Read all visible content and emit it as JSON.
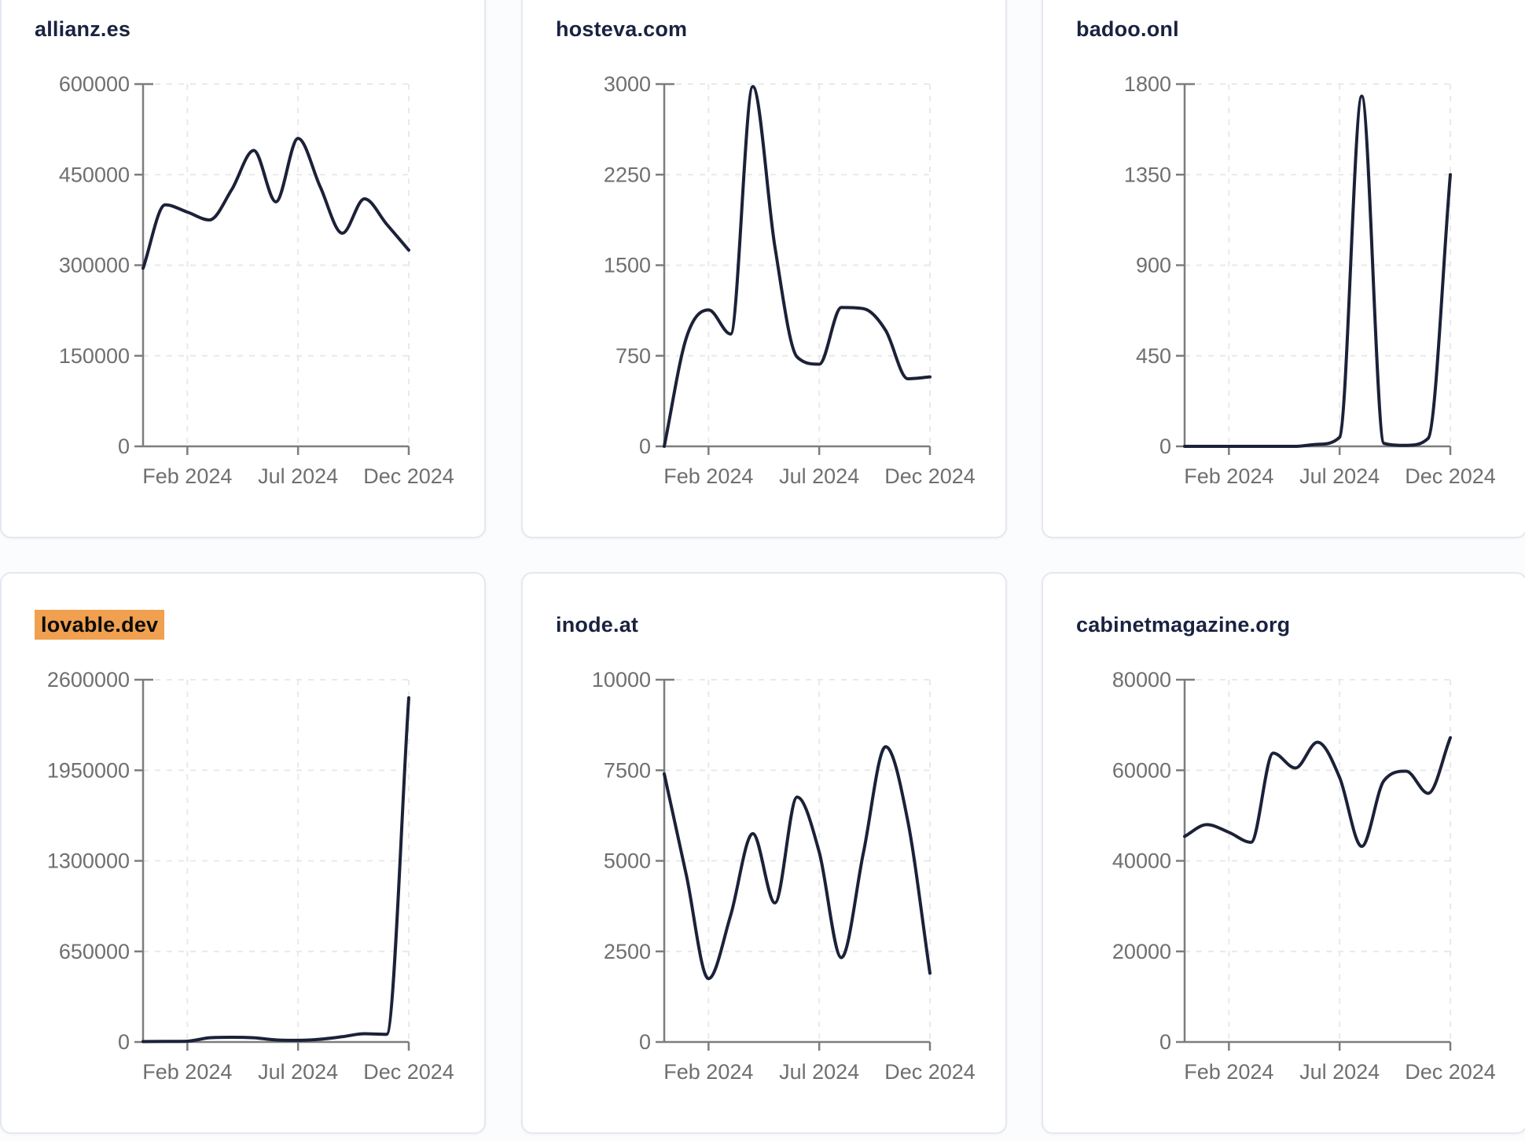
{
  "style": {
    "page_bg": "#fbfcfd",
    "card_bg": "#ffffff",
    "card_border": "#e4e8f0",
    "title_text": "#1a2240",
    "highlight_bg": "#f0a04f",
    "highlight_text": "#0c0c0c",
    "line_color": "#1b2138",
    "tick_text": "#6f6f6f",
    "axis_color": "#7d7d7d",
    "grid_color": "#e9e9e9"
  },
  "chart_data": [
    {
      "type": "line",
      "title": "allianz.es",
      "title_highlighted": false,
      "values": [
        295000,
        400000,
        388000,
        375000,
        425000,
        490000,
        405000,
        510000,
        430000,
        353000,
        410000,
        368000,
        325000
      ],
      "y_ticks": [
        0,
        150000,
        300000,
        450000,
        600000
      ],
      "y_max": 600000,
      "x_tick_labels": [
        "Feb 2024",
        "Jul 2024",
        "Dec 2024"
      ],
      "x_tick_indices": [
        2,
        7,
        12
      ],
      "xlabel": "",
      "ylabel": "",
      "grid": "dashed",
      "legend": "none"
    },
    {
      "type": "line",
      "title": "hosteva.com",
      "title_highlighted": false,
      "values": [
        0,
        900,
        1130,
        930,
        2980,
        1650,
        740,
        680,
        1150,
        1140,
        960,
        560,
        575
      ],
      "y_ticks": [
        0,
        750,
        1500,
        2250,
        3000
      ],
      "y_max": 3000,
      "x_tick_labels": [
        "Feb 2024",
        "Jul 2024",
        "Dec 2024"
      ],
      "x_tick_indices": [
        2,
        7,
        12
      ],
      "xlabel": "",
      "ylabel": "",
      "grid": "dashed",
      "legend": "none"
    },
    {
      "type": "line",
      "title": "badoo.onl",
      "title_highlighted": false,
      "values": [
        0,
        0,
        0,
        0,
        0,
        0,
        10,
        45,
        1740,
        15,
        5,
        40,
        1350
      ],
      "y_ticks": [
        0,
        450,
        900,
        1350,
        1800
      ],
      "y_max": 1800,
      "x_tick_labels": [
        "Feb 2024",
        "Jul 2024",
        "Dec 2024"
      ],
      "x_tick_indices": [
        2,
        7,
        12
      ],
      "xlabel": "",
      "ylabel": "",
      "grid": "dashed",
      "legend": "none"
    },
    {
      "type": "line",
      "title": "lovable.dev",
      "title_highlighted": true,
      "values": [
        3000,
        4000,
        6000,
        30000,
        34000,
        30000,
        15000,
        12000,
        20000,
        38000,
        59000,
        55000,
        2470000
      ],
      "y_ticks": [
        0,
        650000,
        1300000,
        1950000,
        2600000
      ],
      "y_max": 2600000,
      "x_tick_labels": [
        "Feb 2024",
        "Jul 2024",
        "Dec 2024"
      ],
      "x_tick_indices": [
        2,
        7,
        12
      ],
      "xlabel": "",
      "ylabel": "",
      "grid": "dashed",
      "legend": "none"
    },
    {
      "type": "line",
      "title": "inode.at",
      "title_highlighted": false,
      "values": [
        7400,
        4600,
        1750,
        3500,
        5750,
        3840,
        6760,
        5240,
        2330,
        5240,
        8150,
        6100,
        1900
      ],
      "y_ticks": [
        0,
        2500,
        5000,
        7500,
        10000
      ],
      "y_max": 10000,
      "x_tick_labels": [
        "Feb 2024",
        "Jul 2024",
        "Dec 2024"
      ],
      "x_tick_indices": [
        2,
        7,
        12
      ],
      "xlabel": "",
      "ylabel": "",
      "grid": "dashed",
      "legend": "none"
    },
    {
      "type": "line",
      "title": "cabinetmagazine.org",
      "title_highlighted": false,
      "values": [
        45400,
        48000,
        46300,
        44100,
        63800,
        60500,
        66200,
        58400,
        43200,
        57700,
        59800,
        54900,
        67200
      ],
      "y_ticks": [
        0,
        20000,
        40000,
        60000,
        80000
      ],
      "y_max": 80000,
      "x_tick_labels": [
        "Feb 2024",
        "Jul 2024",
        "Dec 2024"
      ],
      "x_tick_indices": [
        2,
        7,
        12
      ],
      "xlabel": "",
      "ylabel": "",
      "grid": "dashed",
      "legend": "none"
    }
  ]
}
